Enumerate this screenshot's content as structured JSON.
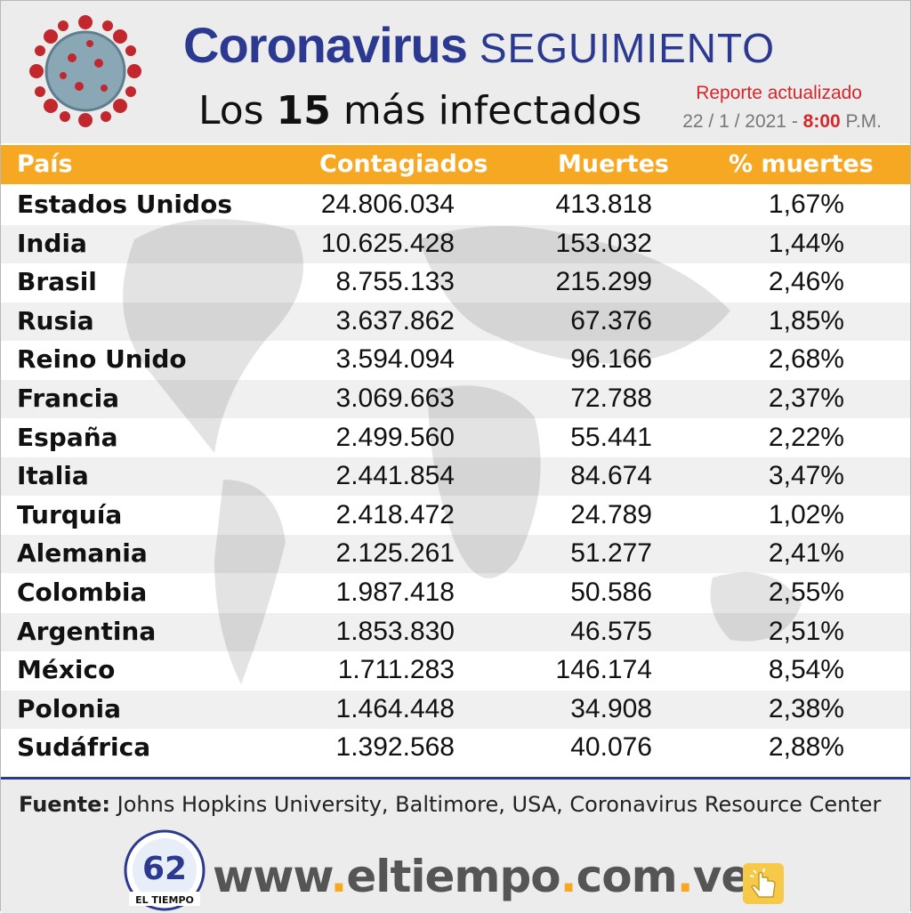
{
  "header": {
    "title_bold": "Coronavirus",
    "title_light": "SEGUIMIENTO",
    "subtitle_prefix": "Los",
    "subtitle_number": "15",
    "subtitle_suffix": "más infectados",
    "report_label": "Reporte actualizado",
    "date_text": "22 / 1 / 2021 -",
    "time_text": "8:00",
    "time_suffix": "P.M."
  },
  "table": {
    "columns": [
      "País",
      "Contagiados",
      "Muertes",
      "% muertes"
    ],
    "rows": [
      [
        "Estados Unidos",
        "24.806.034",
        "413.818",
        "1,67%"
      ],
      [
        "India",
        "10.625.428",
        "153.032",
        "1,44%"
      ],
      [
        "Brasil",
        "8.755.133",
        "215.299",
        "2,46%"
      ],
      [
        "Rusia",
        "3.637.862",
        "67.376",
        "1,85%"
      ],
      [
        "Reino Unido",
        "3.594.094",
        "96.166",
        "2,68%"
      ],
      [
        "Francia",
        "3.069.663",
        "72.788",
        "2,37%"
      ],
      [
        "España",
        "2.499.560",
        "55.441",
        "2,22%"
      ],
      [
        "Italia",
        "2.441.854",
        "84.674",
        "3,47%"
      ],
      [
        "Turquía",
        "2.418.472",
        "24.789",
        "1,02%"
      ],
      [
        "Alemania",
        "2.125.261",
        "51.277",
        "2,41%"
      ],
      [
        "Colombia",
        "1.987.418",
        "50.586",
        "2,55%"
      ],
      [
        "Argentina",
        "1.853.830",
        "46.575",
        "2,51%"
      ],
      [
        "México",
        "1.711.283",
        "146.174",
        "8,54%"
      ],
      [
        "Polonia",
        "1.464.448",
        "34.908",
        "2,38%"
      ],
      [
        "Sudáfrica",
        "1.392.568",
        "40.076",
        "2,88%"
      ]
    ]
  },
  "footer": {
    "source_label": "Fuente:",
    "source_text": "Johns Hopkins University, Baltimore, USA, Coronavirus Resource Center",
    "logo_number": "62",
    "logo_name": "EL TIEMPO",
    "url_parts": [
      "www",
      ".",
      "eltiempo",
      ".",
      "com",
      ".",
      "ve"
    ]
  },
  "colors": {
    "title_blue": "#2b3990",
    "header_orange": "#f7a823",
    "accent_red": "#d7262a"
  },
  "icons": [
    "coronavirus-icon",
    "map-background",
    "el-tiempo-logo",
    "hand-pointer-icon"
  ]
}
